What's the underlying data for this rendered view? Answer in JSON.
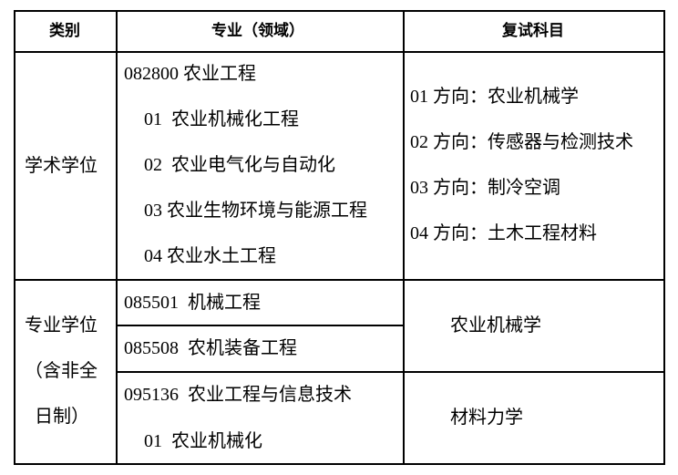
{
  "headers": {
    "category": "类别",
    "major": "专业（领域）",
    "exam": "复试科目"
  },
  "academic": {
    "category": "学术学位",
    "majors": [
      "082800 农业工程",
      "01  农业机械化工程",
      "02  农业电气化与自动化",
      "03 农业生物环境与能源工程",
      "04 农业水土工程"
    ],
    "exams": [
      "01 方向：农业机械学",
      "02 方向：传感器与检测技术",
      "03 方向：制冷空调",
      "04 方向：土木工程材料"
    ]
  },
  "professional": {
    "category_lines": [
      "专业学位",
      "（含非全",
      "日制）"
    ],
    "majors": [
      "085501  机械工程",
      "085508  农机装备工程",
      "095136  农业工程与信息技术",
      "01  农业机械化"
    ],
    "exams": [
      "农业机械学",
      "材料力学"
    ]
  }
}
